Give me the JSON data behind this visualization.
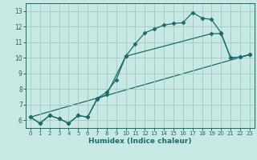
{
  "xlabel": "Humidex (Indice chaleur)",
  "xlim": [
    -0.5,
    23.5
  ],
  "ylim": [
    5.5,
    13.5
  ],
  "xticks": [
    0,
    1,
    2,
    3,
    4,
    5,
    6,
    7,
    8,
    9,
    10,
    11,
    12,
    13,
    14,
    15,
    16,
    17,
    18,
    19,
    20,
    21,
    22,
    23
  ],
  "yticks": [
    6,
    7,
    8,
    9,
    10,
    11,
    12,
    13
  ],
  "bg_color": "#c8e8e4",
  "line_color": "#1a6b6b",
  "grid_color": "#a0c8c4",
  "line1_x": [
    0,
    1,
    2,
    3,
    4,
    5,
    6,
    7,
    8,
    9,
    10,
    11,
    12,
    13,
    14,
    15,
    16,
    17,
    18,
    19,
    20,
    21,
    22,
    23
  ],
  "line1_y": [
    6.2,
    5.8,
    6.3,
    6.1,
    5.8,
    6.3,
    6.2,
    7.4,
    7.8,
    8.6,
    10.1,
    10.9,
    11.6,
    11.85,
    12.1,
    12.2,
    12.25,
    12.9,
    12.55,
    12.45,
    11.6,
    10.0,
    10.05,
    10.2
  ],
  "line2_x": [
    0,
    1,
    2,
    3,
    4,
    5,
    6,
    7,
    8,
    10,
    19,
    20,
    21,
    22,
    23
  ],
  "line2_y": [
    6.2,
    5.8,
    6.3,
    6.1,
    5.8,
    6.3,
    6.2,
    7.35,
    7.65,
    10.1,
    11.55,
    11.55,
    10.0,
    10.05,
    10.2
  ],
  "line3_x": [
    0,
    23
  ],
  "line3_y": [
    6.2,
    10.2
  ]
}
